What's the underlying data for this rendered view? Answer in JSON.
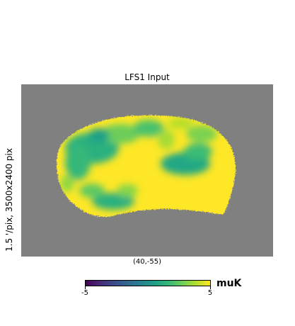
{
  "chart_data": {
    "type": "heatmap",
    "title": "LFS1 Input",
    "ylabel": "1.5 '/pix,   3500x2400 pix",
    "center_label": "(40,-55)",
    "colorbar": {
      "colormap": "viridis",
      "min": -5,
      "max": 5,
      "tick_labels": [
        "-5",
        "5"
      ],
      "unit": "muK"
    },
    "background_color": "#808080",
    "saturated_color": "#fde725"
  }
}
